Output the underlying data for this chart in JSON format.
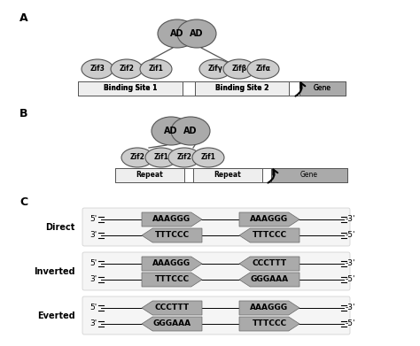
{
  "bg_color": "#ffffff",
  "panel_a_label": "A",
  "panel_b_label": "B",
  "panel_c_label": "C",
  "ad_color": "#aaaaaa",
  "zif_color": "#cccccc",
  "binding_color": "#eeeeee",
  "gene_color": "#aaaaaa",
  "seq_bg_color": "#aaaaaa",
  "direct_row1": [
    "AAAGGG",
    "AAAGGG"
  ],
  "direct_row2": [
    "TTTCCC",
    "TTTCCC"
  ],
  "direct_arr1": [
    "right",
    "right"
  ],
  "direct_arr2": [
    "left",
    "left"
  ],
  "inverted_row1": [
    "AAAGGG",
    "CCCTTT"
  ],
  "inverted_row2": [
    "TTTCCC",
    "GGGAAA"
  ],
  "inverted_arr1": [
    "right",
    "left"
  ],
  "inverted_arr2": [
    "right",
    "left"
  ],
  "everted_row1": [
    "CCCTTT",
    "AAAGGG"
  ],
  "everted_row2": [
    "GGGAAA",
    "TTTCCC"
  ],
  "everted_arr1": [
    "left",
    "right"
  ],
  "everted_arr2": [
    "left",
    "right"
  ]
}
